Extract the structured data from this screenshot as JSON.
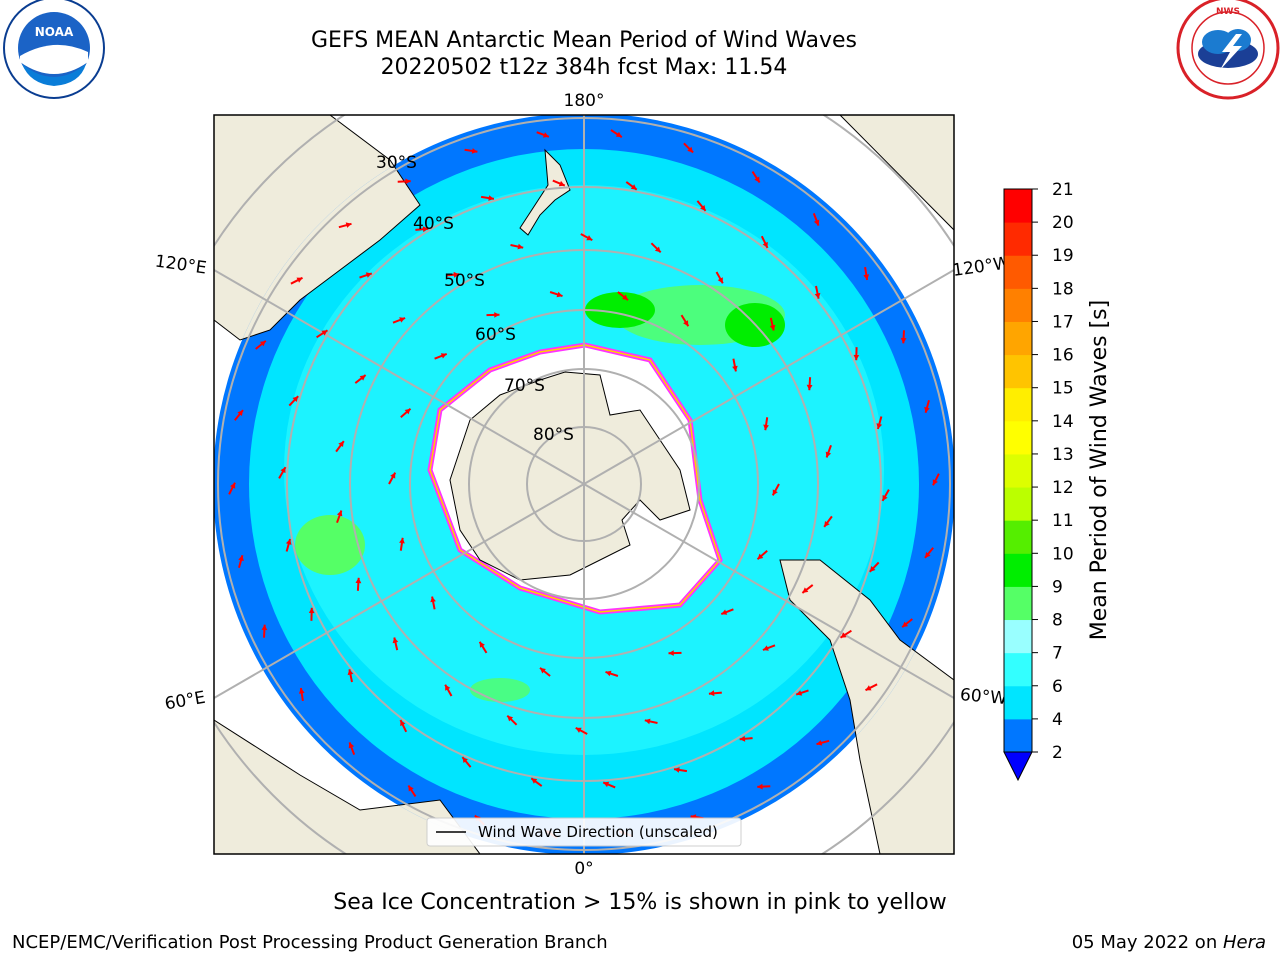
{
  "header": {
    "title_line_1": "GEFS MEAN Antarctic Mean Period of Wind Waves",
    "title_line_2": "20220502 t12z 384h fcst   Max: 11.54"
  },
  "logos": {
    "left": {
      "name": "noaa-logo",
      "text": "NOAA"
    },
    "right": {
      "name": "national-weather-service-logo",
      "text": "NATIONAL WEATHER SERVICE"
    }
  },
  "map": {
    "projection": "south-polar-stereographic",
    "longitude_labels": {
      "top": "180°",
      "bottom": "0°",
      "left_upper": "120°E",
      "left_lower": "60°E",
      "right_upper": "120°W",
      "right_lower": "60°W"
    },
    "latitude_labels": [
      "30°S",
      "40°S",
      "50°S",
      "60°S",
      "70°S",
      "80°S"
    ],
    "legend_label": "Wind Wave Direction (unscaled)",
    "vector_color": "#ff0000",
    "land_color": "#efecdc",
    "ice_edge_colors": [
      "#ff33ff",
      "#ffd000"
    ]
  },
  "colorbar": {
    "label": "Mean Period of Wind Waves [s]",
    "ticks": [
      "2",
      "4",
      "6",
      "7",
      "8",
      "9",
      "10",
      "11",
      "12",
      "13",
      "14",
      "15",
      "16",
      "17",
      "18",
      "19",
      "20",
      "21"
    ],
    "colors": [
      "#0077ff",
      "#00e5ff",
      "#33ffff",
      "#99ffff",
      "#55ff66",
      "#00ee00",
      "#55ee00",
      "#bbff00",
      "#ddff00",
      "#ffff00",
      "#ffee00",
      "#ffc400",
      "#ffa500",
      "#ff8000",
      "#ff5a00",
      "#ff2a00",
      "#ff0000"
    ],
    "under_color": "#0000ff"
  },
  "caption": "Sea Ice Concentration > 15% is shown in pink to yellow",
  "footer": {
    "left": "NCEP/EMC/Verification Post Processing Product Generation Branch",
    "right_prefix": "05 May 2022 on ",
    "right_host": "Hera"
  }
}
